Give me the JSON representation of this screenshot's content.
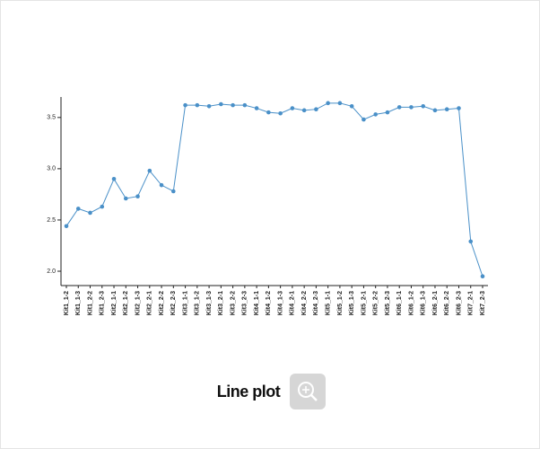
{
  "chart_data": {
    "type": "line",
    "caption": "Line plot",
    "categories": [
      "Kit1_1-2",
      "Kit1_1-3",
      "Kit1_2-2",
      "Kit1_2-3",
      "Kit2_1-1",
      "Kit2_1-2",
      "Kit2_1-3",
      "Kit2_2-1",
      "Kit2_2-2",
      "Kit2_2-3",
      "Kit3_1-1",
      "Kit3_1-2",
      "Kit3_1-3",
      "Kit3_2-1",
      "Kit3_2-2",
      "Kit3_2-3",
      "Kit4_1-1",
      "Kit4_1-2",
      "Kit4_1-3",
      "Kit4_2-1",
      "Kit4_2-2",
      "Kit4_2-3",
      "Kit5_1-1",
      "Kit5_1-2",
      "Kit5_1-3",
      "Kit5_2-1",
      "Kit5_2-2",
      "Kit5_2-3",
      "Kit6_1-1",
      "Kit6_1-2",
      "Kit6_1-3",
      "Kit6_2-1",
      "Kit6_2-2",
      "Kit6_2-3",
      "Kit7_2-1",
      "Kit7_2-3"
    ],
    "series": [
      {
        "color": "#4a90c8",
        "values": [
          2.44,
          2.61,
          2.57,
          2.63,
          2.9,
          2.71,
          2.73,
          2.98,
          2.84,
          2.78,
          3.62,
          3.62,
          3.61,
          3.63,
          3.62,
          3.62,
          3.59,
          3.55,
          3.54,
          3.59,
          3.57,
          3.58,
          3.64,
          3.64,
          3.61,
          3.48,
          3.53,
          3.55,
          3.6,
          3.6,
          3.61,
          3.57,
          3.58,
          3.59,
          2.29,
          1.95
        ]
      }
    ],
    "ylim": [
      1.86,
      3.7
    ],
    "yticks": [
      {
        "value": 2,
        "label": "2.0"
      },
      2.5,
      {
        "value": 3,
        "label": "3.0"
      },
      3.5
    ]
  }
}
